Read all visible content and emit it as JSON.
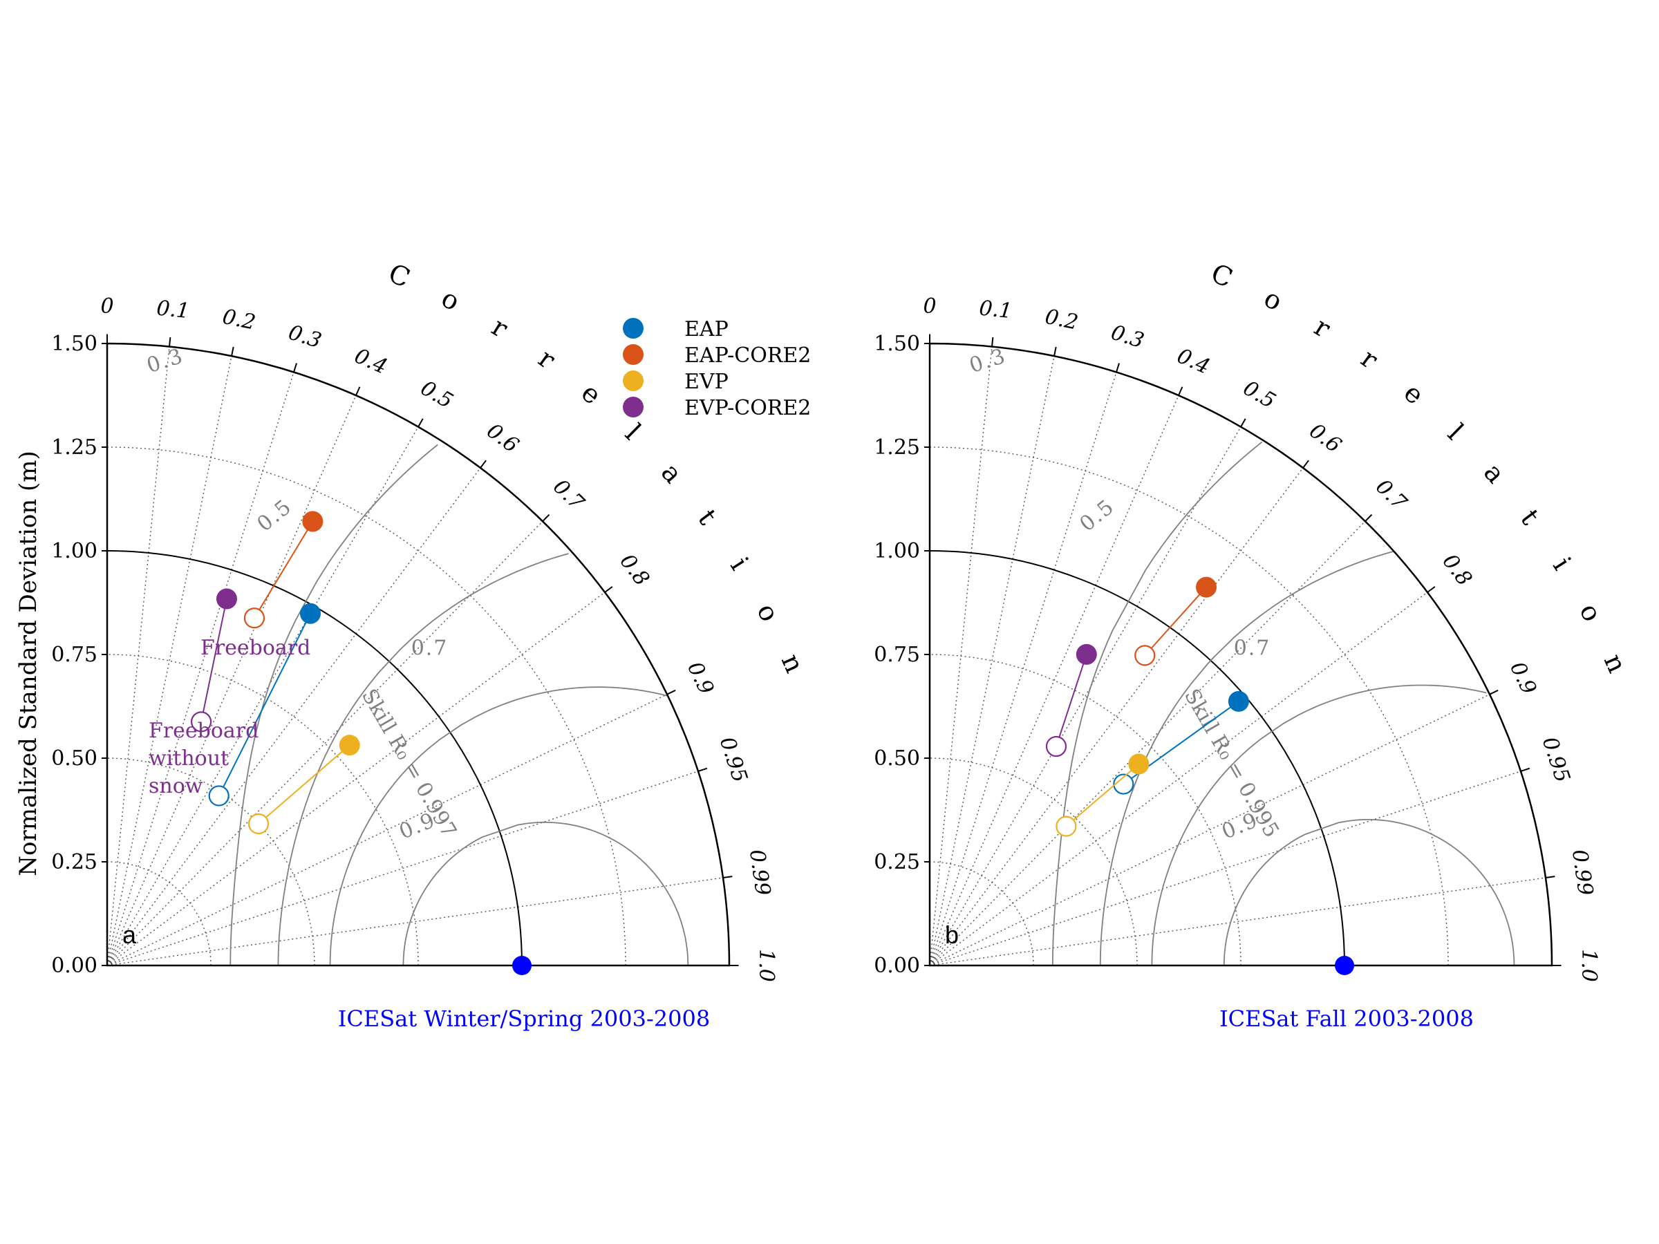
{
  "figure": {
    "ylabel": "Normalized Standard Deviation (m)",
    "correlation_label": "Correlation",
    "legend": [
      {
        "label": "EAP",
        "color": "#0072bd"
      },
      {
        "label": "EAP-CORE2",
        "color": "#d95319"
      },
      {
        "label": "EVP",
        "color": "#edb120"
      },
      {
        "label": "EVP-CORE2",
        "color": "#7e2f8e"
      }
    ],
    "reference_color": "#0000ff",
    "caption_color": "#0000ff",
    "annotation_color": "#7e2f8e",
    "grey_color": "#808080"
  },
  "chart_data": [
    {
      "type": "scatter",
      "subtype": "taylor-diagram",
      "panel_label": "a",
      "title": "ICESat Winter/Spring 2003-2008",
      "std_ticks": [
        "0.00",
        "0.25",
        "0.50",
        "0.75",
        "1.00",
        "1.25",
        "1.50"
      ],
      "std_range": [
        0,
        1.5
      ],
      "correlation_ticks": [
        "0",
        "0.1",
        "0.2",
        "0.3",
        "0.4",
        "0.5",
        "0.6",
        "0.7",
        "0.8",
        "0.9",
        "0.95",
        "0.99",
        "1.0"
      ],
      "skill_contours": [
        {
          "label": "0.3",
          "value": 0.3
        },
        {
          "label": "0.5",
          "value": 0.5
        },
        {
          "label": "0.7",
          "value": 0.7
        },
        {
          "label": "0.9",
          "value": 0.9
        }
      ],
      "skill_annotation": "Skill R₀ = 0.997",
      "reference_point": {
        "std": 1.0,
        "corr": 1.0
      },
      "annotations": [
        "Freeboard",
        "Freeboard without snow"
      ],
      "series": [
        {
          "name": "EAP",
          "freeboard": {
            "std": 0.98,
            "corr": 0.5
          },
          "without_snow": {
            "std": 0.49,
            "corr": 0.55
          }
        },
        {
          "name": "EAP-CORE2",
          "freeboard": {
            "std": 1.18,
            "corr": 0.42
          },
          "without_snow": {
            "std": 0.91,
            "corr": 0.39
          }
        },
        {
          "name": "EVP",
          "freeboard": {
            "std": 0.79,
            "corr": 0.74
          },
          "without_snow": {
            "std": 0.5,
            "corr": 0.73
          }
        },
        {
          "name": "EVP-CORE2",
          "freeboard": {
            "std": 0.93,
            "corr": 0.31
          },
          "without_snow": {
            "std": 0.63,
            "corr": 0.36
          }
        }
      ]
    },
    {
      "type": "scatter",
      "subtype": "taylor-diagram",
      "panel_label": "b",
      "title": "ICESat Fall 2003-2008",
      "std_ticks": [
        "0.00",
        "0.25",
        "0.50",
        "0.75",
        "1.00",
        "1.25",
        "1.50"
      ],
      "std_range": [
        0,
        1.5
      ],
      "correlation_ticks": [
        "0",
        "0.1",
        "0.2",
        "0.3",
        "0.4",
        "0.5",
        "0.6",
        "0.7",
        "0.8",
        "0.9",
        "0.95",
        "0.99",
        "1.0"
      ],
      "skill_contours": [
        {
          "label": "0.3",
          "value": 0.3
        },
        {
          "label": "0.5",
          "value": 0.5
        },
        {
          "label": "0.7",
          "value": 0.7
        },
        {
          "label": "0.9",
          "value": 0.9
        }
      ],
      "skill_annotation": "Skill R₀ = 0.995",
      "reference_point": {
        "std": 1.0,
        "corr": 1.0
      },
      "series": [
        {
          "name": "EAP",
          "freeboard": {
            "std": 0.98,
            "corr": 0.76
          },
          "without_snow": {
            "std": 0.64,
            "corr": 0.73
          }
        },
        {
          "name": "EAP-CORE2",
          "freeboard": {
            "std": 1.13,
            "corr": 0.59
          },
          "without_snow": {
            "std": 0.91,
            "corr": 0.57
          }
        },
        {
          "name": "EVP",
          "freeboard": {
            "std": 0.7,
            "corr": 0.72
          },
          "without_snow": {
            "std": 0.47,
            "corr": 0.7
          }
        },
        {
          "name": "EVP-CORE2",
          "freeboard": {
            "std": 0.84,
            "corr": 0.45
          },
          "without_snow": {
            "std": 0.61,
            "corr": 0.5
          }
        }
      ]
    }
  ]
}
